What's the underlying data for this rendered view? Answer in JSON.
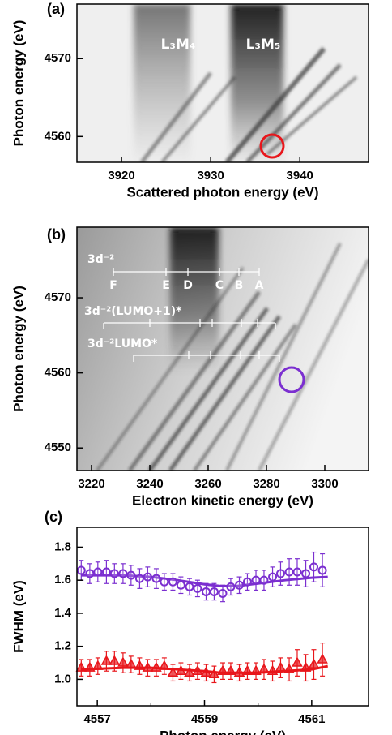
{
  "chart_data": [
    {
      "type": "image-map",
      "panel_label": "(a)",
      "xlabel": "Scattered photon energy (eV)",
      "ylabel": "Photon energy (eV)",
      "xlim": [
        3915,
        3947.7
      ],
      "ylim": [
        4556.7,
        4577
      ],
      "xticks": [
        3920,
        3930,
        3940
      ],
      "yticks": [
        4560,
        4570
      ],
      "annotations": [
        "L₃M₄",
        "L₃M₅"
      ]
    },
    {
      "type": "image-map",
      "panel_label": "(b)",
      "xlabel": "Electron kinetic energy (eV)",
      "ylabel": "Photon energy (eV)",
      "xlim": [
        3215,
        3315
      ],
      "ylim": [
        4547,
        4579.4
      ],
      "xticks": [
        3220,
        3240,
        3260,
        3280,
        3300
      ],
      "yticks": [
        4550,
        4560,
        4570
      ],
      "annotations": [
        "3d⁻²",
        "3d⁻²(LUMO+1)*",
        "3d⁻²LUMO*"
      ],
      "peak_labels": [
        "F",
        "E",
        "D",
        "C",
        "B",
        "A"
      ]
    },
    {
      "type": "scatter",
      "panel_label": "(c)",
      "xlabel": "Photon energy (eV)",
      "ylabel": "FWHM (eV)",
      "xlim": [
        4556.62,
        4562.06
      ],
      "ylim": [
        0.84,
        1.92
      ],
      "xticks": [
        4557,
        4559,
        4561
      ],
      "xticks_minor": [
        4558,
        4560
      ],
      "yticks": [
        {
          "value": 1,
          "label": "1.0"
        },
        1.2,
        1.4,
        1.6,
        1.8
      ],
      "x": [
        4556.7,
        4556.86,
        4557.01,
        4557.17,
        4557.32,
        4557.48,
        4557.63,
        4557.79,
        4557.94,
        4558.1,
        4558.25,
        4558.41,
        4558.56,
        4558.72,
        4558.87,
        4559.03,
        4559.18,
        4559.34,
        4559.49,
        4559.65,
        4559.8,
        4559.96,
        4560.11,
        4560.27,
        4560.42,
        4560.58,
        4560.73,
        4560.89,
        4561.04,
        4561.2
      ],
      "series": [
        {
          "color": "#7b2fd0",
          "marker": "circle",
          "values": [
            1.66,
            1.64,
            1.65,
            1.65,
            1.64,
            1.64,
            1.63,
            1.61,
            1.62,
            1.61,
            1.59,
            1.59,
            1.57,
            1.56,
            1.55,
            1.53,
            1.53,
            1.52,
            1.56,
            1.57,
            1.59,
            1.6,
            1.6,
            1.62,
            1.64,
            1.65,
            1.65,
            1.64,
            1.68,
            1.66
          ],
          "errors": [
            0.06,
            0.06,
            0.06,
            0.07,
            0.06,
            0.06,
            0.06,
            0.06,
            0.06,
            0.06,
            0.05,
            0.05,
            0.05,
            0.05,
            0.05,
            0.05,
            0.05,
            0.05,
            0.05,
            0.05,
            0.05,
            0.06,
            0.06,
            0.06,
            0.07,
            0.08,
            0.08,
            0.08,
            0.09,
            0.1
          ]
        },
        {
          "color": "#e8161b",
          "marker": "triangle",
          "values": [
            1.07,
            1.07,
            1.08,
            1.11,
            1.11,
            1.1,
            1.09,
            1.08,
            1.07,
            1.07,
            1.08,
            1.04,
            1.05,
            1.04,
            1.05,
            1.04,
            1.03,
            1.05,
            1.05,
            1.04,
            1.05,
            1.05,
            1.06,
            1.05,
            1.07,
            1.06,
            1.1,
            1.07,
            1.09,
            1.12
          ],
          "errors": [
            0.05,
            0.05,
            0.05,
            0.06,
            0.06,
            0.06,
            0.05,
            0.05,
            0.05,
            0.05,
            0.05,
            0.05,
            0.05,
            0.05,
            0.05,
            0.05,
            0.05,
            0.05,
            0.05,
            0.05,
            0.05,
            0.05,
            0.06,
            0.06,
            0.06,
            0.07,
            0.08,
            0.08,
            0.09,
            0.1
          ]
        }
      ],
      "fits": [
        {
          "color": "#7b2fd0",
          "x": [
            4556.7,
            4557.5,
            4558,
            4558.5,
            4559,
            4559.3,
            4559.6,
            4560,
            4560.5,
            4561,
            4561.3
          ],
          "values": [
            1.63,
            1.63,
            1.62,
            1.6,
            1.575,
            1.565,
            1.565,
            1.58,
            1.6,
            1.615,
            1.62
          ]
        },
        {
          "color": "#e8161b",
          "x": [
            4556.7,
            4557.5,
            4558,
            4558.5,
            4559,
            4559.3,
            4559.6,
            4560,
            4560.5,
            4561,
            4561.3
          ],
          "values": [
            1.06,
            1.07,
            1.07,
            1.06,
            1.05,
            1.04,
            1.04,
            1.04,
            1.05,
            1.06,
            1.08
          ]
        }
      ]
    }
  ]
}
